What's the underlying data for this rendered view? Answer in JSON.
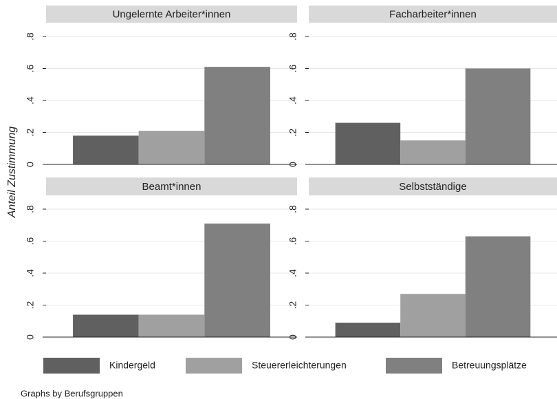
{
  "chart_data": {
    "type": "bar",
    "y_label": "Anteil Zustimmung",
    "note": "Graphs by Berufsgruppen",
    "ylim": [
      0,
      0.886
    ],
    "yticks": [
      0,
      {
        "value": 0.2,
        "label": ".2"
      },
      {
        "value": 0.4,
        "label": ".4"
      },
      {
        "value": 0.6,
        "label": ".6"
      },
      {
        "value": 0.8,
        "label": ".8"
      }
    ],
    "grid": true,
    "legend": "bottom",
    "series": [
      {
        "name": "Kindergeld",
        "color": "#606060"
      },
      {
        "name": "Steuererleichterungen",
        "color": "#a0a0a0"
      },
      {
        "name": "Betreuungsplätze",
        "color": "#808080"
      }
    ],
    "facets": [
      {
        "title": "Ungelernte Arbeiter*innen",
        "values": [
          0.18,
          0.21,
          0.61
        ]
      },
      {
        "title": "Facharbeiter*innen",
        "values": [
          0.26,
          0.15,
          0.6
        ]
      },
      {
        "title": "Beamt*innen",
        "values": [
          0.14,
          0.14,
          0.71
        ]
      },
      {
        "title": "Selbstständige",
        "values": [
          0.09,
          0.27,
          0.63
        ]
      }
    ]
  }
}
